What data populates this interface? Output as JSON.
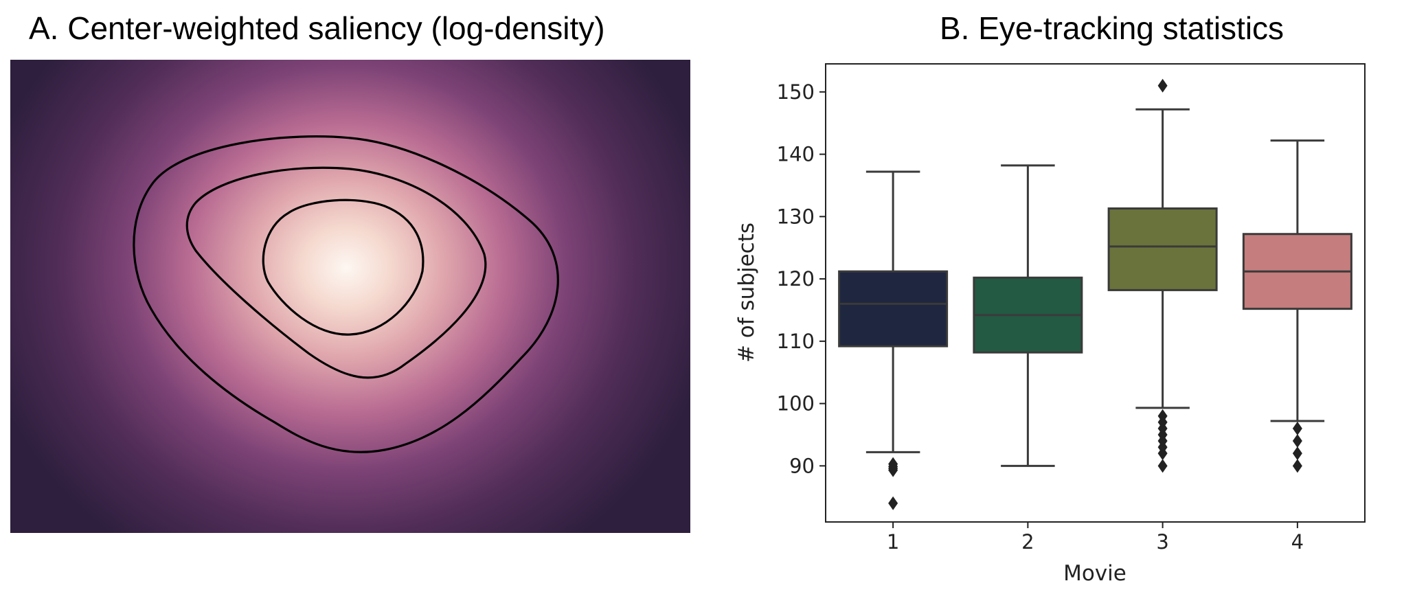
{
  "panel_a": {
    "title": "A. Center-weighted saliency (log-density)"
  },
  "panel_b": {
    "title": "B. Eye-tracking statistics"
  },
  "chart_data": [
    {
      "type": "heatmap",
      "title": "A. Center-weighted saliency (log-density)",
      "colormap": [
        "#2e1f3e",
        "#5c3361",
        "#9a5585",
        "#d596a6",
        "#f7ddd3",
        "#fdf7f2"
      ],
      "contour_levels": 3,
      "grid": false
    },
    {
      "type": "box",
      "title": "B. Eye-tracking statistics",
      "xlabel": "Movie",
      "ylabel": "# of subjects",
      "categories": [
        "1",
        "2",
        "3",
        "4"
      ],
      "ylim": [
        81,
        154.5
      ],
      "yticks": [
        90,
        100,
        110,
        120,
        130,
        140,
        150
      ],
      "grid": false,
      "boxes": [
        {
          "category": "1",
          "color": "#1f2640",
          "whisker_low": 92.2,
          "q1": 109.2,
          "median": 116,
          "q3": 121.2,
          "whisker_high": 137.2,
          "outliers": [
            90.3,
            89.9,
            89.6,
            89.3,
            84
          ]
        },
        {
          "category": "2",
          "color": "#225a43",
          "whisker_low": 90,
          "q1": 108.2,
          "median": 114.2,
          "q3": 120.2,
          "whisker_high": 138.2,
          "outliers": []
        },
        {
          "category": "3",
          "color": "#6a733b",
          "whisker_low": 99.3,
          "q1": 118.2,
          "median": 125.2,
          "q3": 131.3,
          "whisker_high": 147.2,
          "outliers": [
            151,
            98,
            97,
            96,
            95,
            94,
            93,
            92,
            90
          ]
        },
        {
          "category": "4",
          "color": "#c57d7d",
          "whisker_low": 97.2,
          "q1": 115.2,
          "median": 121.2,
          "q3": 127.2,
          "whisker_high": 142.2,
          "outliers": [
            96,
            94,
            92,
            90
          ]
        }
      ]
    }
  ]
}
